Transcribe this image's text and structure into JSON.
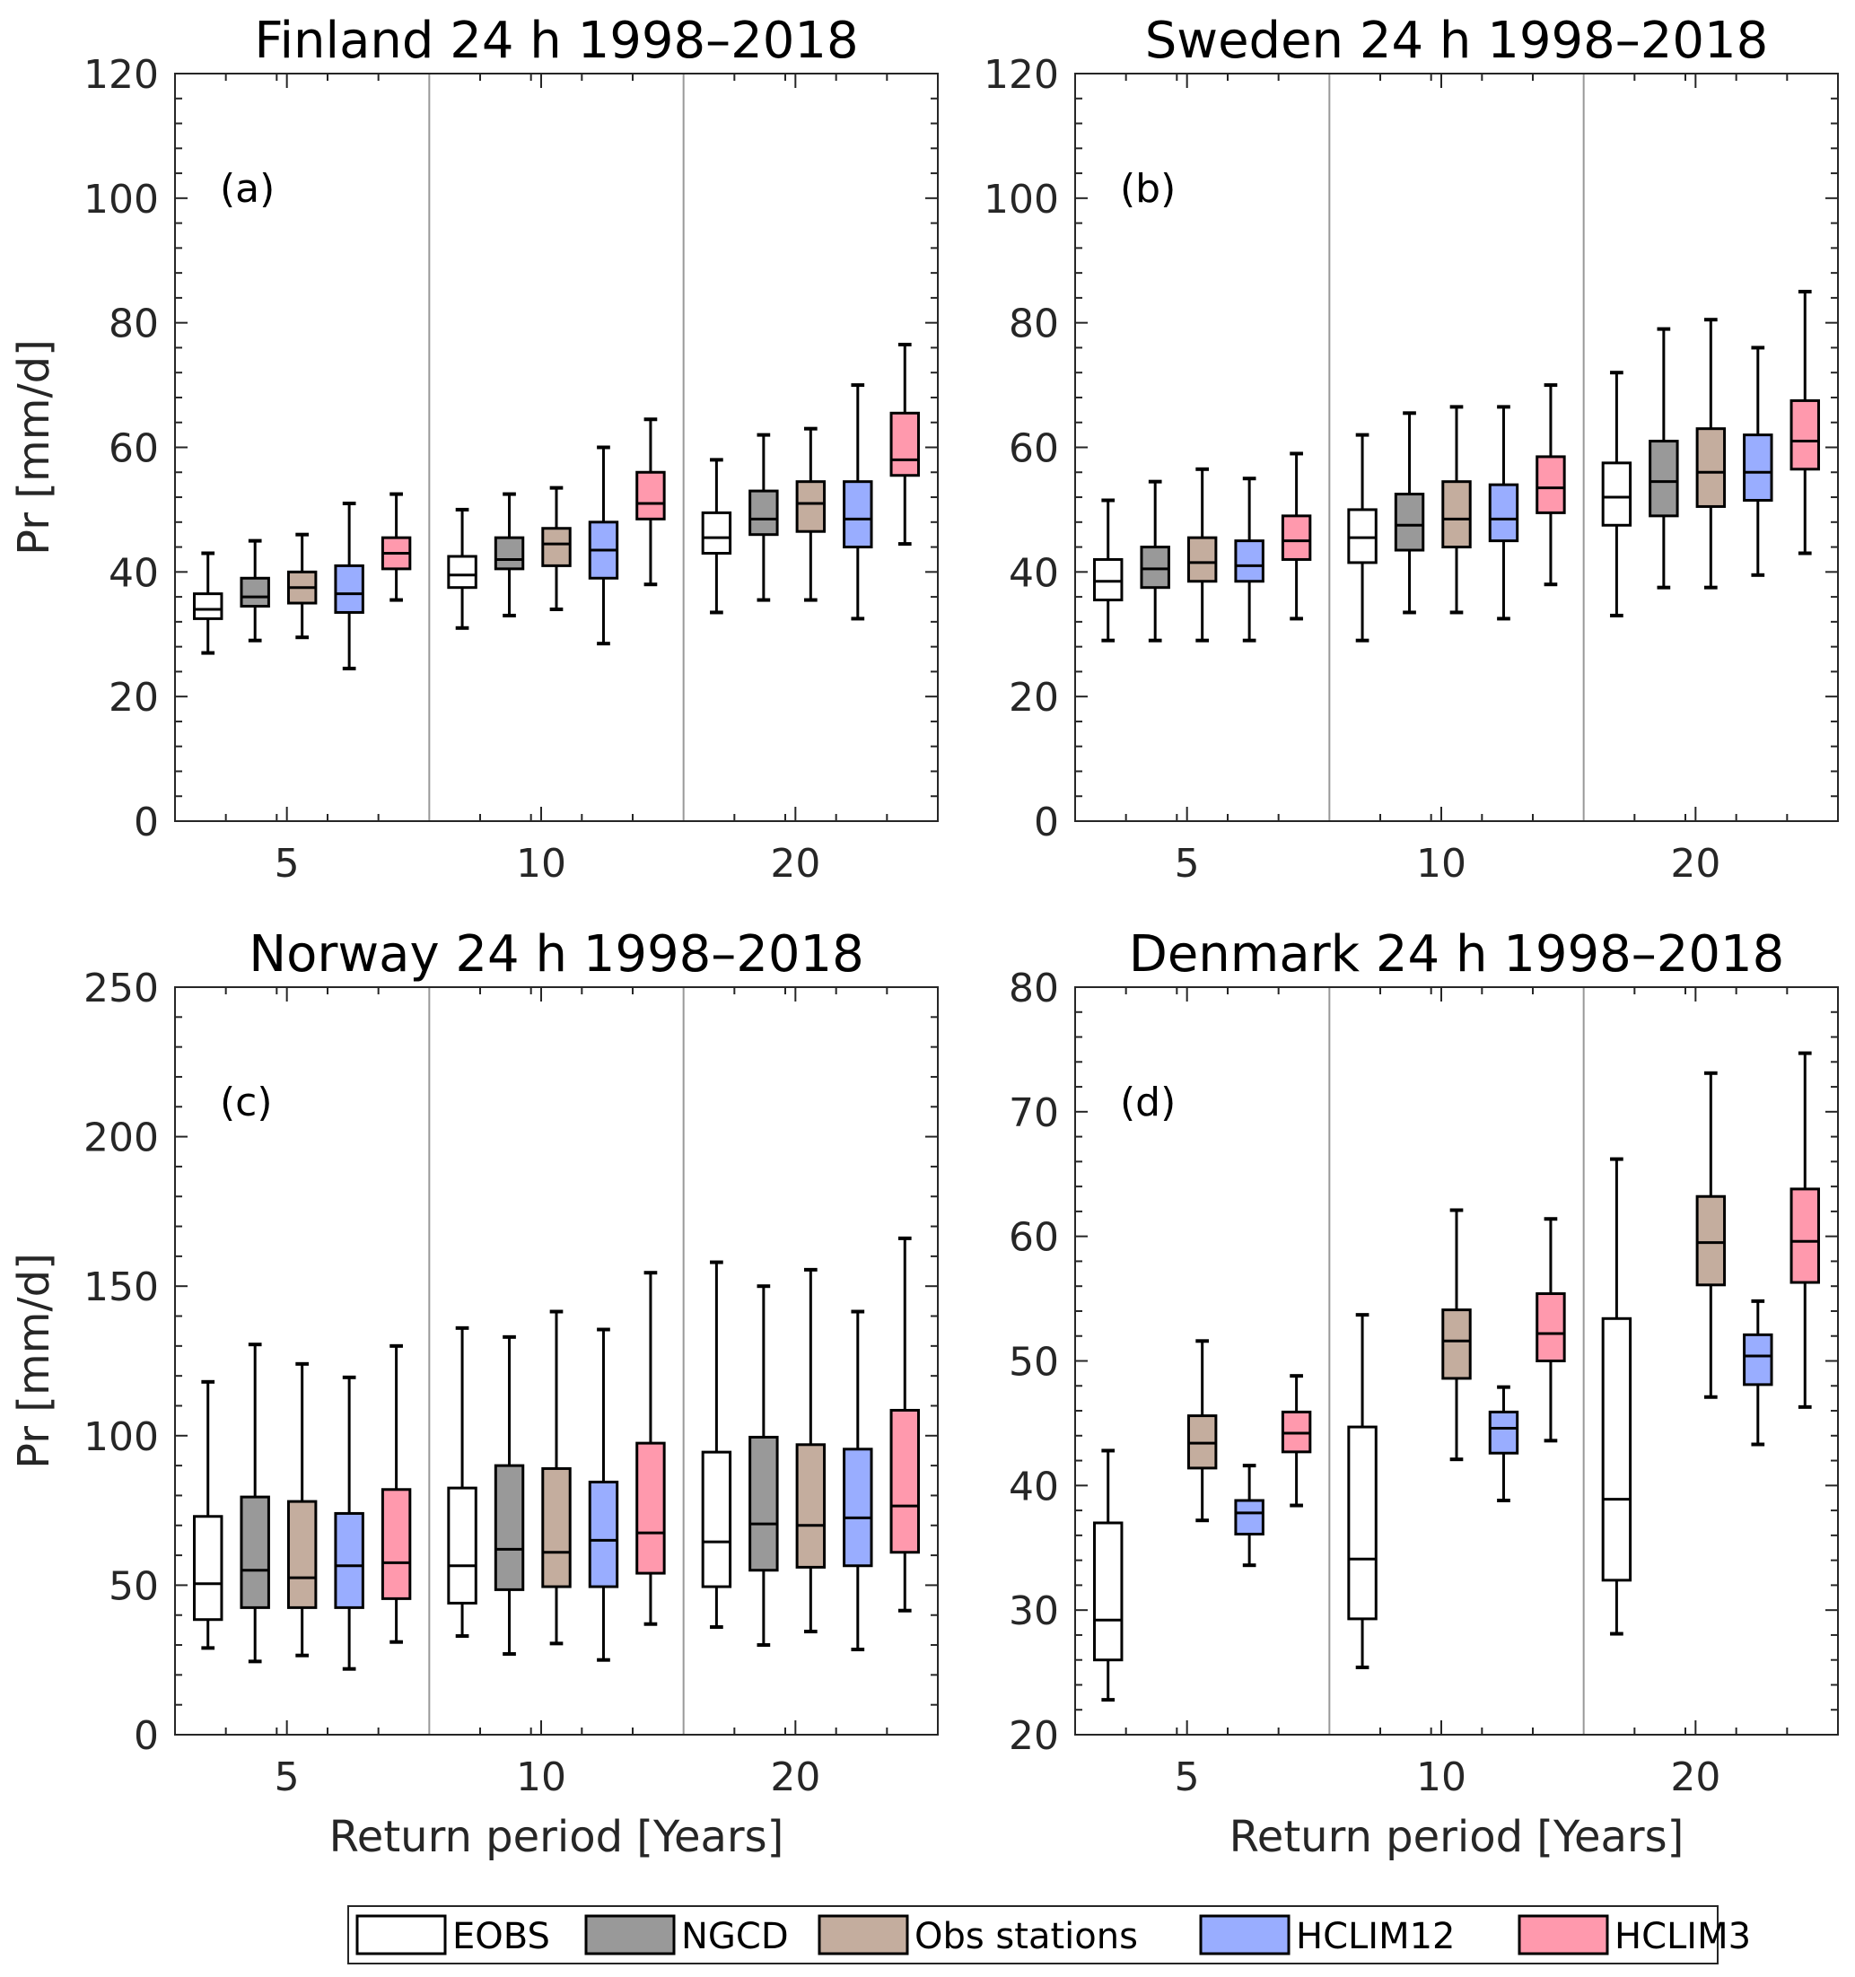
{
  "legend": {
    "items": [
      {
        "name": "EOBS",
        "color": "#ffffff"
      },
      {
        "name": "NGCD",
        "color": "#999999"
      },
      {
        "name": "Obs stations",
        "color": "#c4ad9e"
      },
      {
        "name": "HCLIM12",
        "color": "#99adff"
      },
      {
        "name": "HCLIM3",
        "color": "#ff99ad"
      }
    ]
  },
  "chart_data": [
    {
      "type": "box",
      "title": "Finland 24 h 1998–2018",
      "panel_label": "(a)",
      "xlabel": "",
      "ylabel": "Pr [mm/d]",
      "ylim": [
        0,
        120
      ],
      "yticks": [
        0,
        20,
        40,
        60,
        80,
        100,
        120
      ],
      "categories": [
        "5",
        "10",
        "20"
      ],
      "series": [
        {
          "name": "EOBS",
          "boxes": [
            {
              "whisker_low": 27,
              "q1": 32.5,
              "median": 34,
              "q3": 36.5,
              "whisker_high": 43
            },
            {
              "whisker_low": 31,
              "q1": 37.5,
              "median": 39.5,
              "q3": 42.5,
              "whisker_high": 50
            },
            {
              "whisker_low": 33.5,
              "q1": 43,
              "median": 45.5,
              "q3": 49.5,
              "whisker_high": 58
            }
          ]
        },
        {
          "name": "NGCD",
          "boxes": [
            {
              "whisker_low": 29,
              "q1": 34.5,
              "median": 36,
              "q3": 39,
              "whisker_high": 45
            },
            {
              "whisker_low": 33,
              "q1": 40.5,
              "median": 42,
              "q3": 45.5,
              "whisker_high": 52.5
            },
            {
              "whisker_low": 35.5,
              "q1": 46,
              "median": 48.5,
              "q3": 53,
              "whisker_high": 62
            }
          ]
        },
        {
          "name": "Obs stations",
          "boxes": [
            {
              "whisker_low": 29.5,
              "q1": 35,
              "median": 37.5,
              "q3": 40,
              "whisker_high": 46
            },
            {
              "whisker_low": 34,
              "q1": 41,
              "median": 44.5,
              "q3": 47,
              "whisker_high": 53.5
            },
            {
              "whisker_low": 35.5,
              "q1": 46.5,
              "median": 51,
              "q3": 54.5,
              "whisker_high": 63
            }
          ]
        },
        {
          "name": "HCLIM12",
          "boxes": [
            {
              "whisker_low": 24.5,
              "q1": 33.5,
              "median": 36.5,
              "q3": 41,
              "whisker_high": 51
            },
            {
              "whisker_low": 28.5,
              "q1": 39,
              "median": 43.5,
              "q3": 48,
              "whisker_high": 60
            },
            {
              "whisker_low": 32.5,
              "q1": 44,
              "median": 48.5,
              "q3": 54.5,
              "whisker_high": 70
            }
          ]
        },
        {
          "name": "HCLIM3",
          "boxes": [
            {
              "whisker_low": 35.5,
              "q1": 40.5,
              "median": 43,
              "q3": 45.5,
              "whisker_high": 52.5
            },
            {
              "whisker_low": 38,
              "q1": 48.5,
              "median": 51,
              "q3": 56,
              "whisker_high": 64.5
            },
            {
              "whisker_low": 44.5,
              "q1": 55.5,
              "median": 58,
              "q3": 65.5,
              "whisker_high": 76.5
            }
          ]
        }
      ]
    },
    {
      "type": "box",
      "title": "Sweden 24 h 1998–2018",
      "panel_label": "(b)",
      "xlabel": "",
      "ylabel": "",
      "ylim": [
        0,
        120
      ],
      "yticks": [
        0,
        20,
        40,
        60,
        80,
        100,
        120
      ],
      "categories": [
        "5",
        "10",
        "20"
      ],
      "series": [
        {
          "name": "EOBS",
          "boxes": [
            {
              "whisker_low": 29,
              "q1": 35.5,
              "median": 38.5,
              "q3": 42,
              "whisker_high": 51.5
            },
            {
              "whisker_low": 29,
              "q1": 41.5,
              "median": 45.5,
              "q3": 50,
              "whisker_high": 62
            },
            {
              "whisker_low": 33,
              "q1": 47.5,
              "median": 52,
              "q3": 57.5,
              "whisker_high": 72
            }
          ]
        },
        {
          "name": "NGCD",
          "boxes": [
            {
              "whisker_low": 29,
              "q1": 37.5,
              "median": 40.5,
              "q3": 44,
              "whisker_high": 54.5
            },
            {
              "whisker_low": 33.5,
              "q1": 43.5,
              "median": 47.5,
              "q3": 52.5,
              "whisker_high": 65.5
            },
            {
              "whisker_low": 37.5,
              "q1": 49,
              "median": 54.5,
              "q3": 61,
              "whisker_high": 79
            }
          ]
        },
        {
          "name": "Obs stations",
          "boxes": [
            {
              "whisker_low": 29,
              "q1": 38.5,
              "median": 41.5,
              "q3": 45.5,
              "whisker_high": 56.5
            },
            {
              "whisker_low": 33.5,
              "q1": 44,
              "median": 48.5,
              "q3": 54.5,
              "whisker_high": 66.5
            },
            {
              "whisker_low": 37.5,
              "q1": 50.5,
              "median": 56,
              "q3": 63,
              "whisker_high": 80.5
            }
          ]
        },
        {
          "name": "HCLIM12",
          "boxes": [
            {
              "whisker_low": 29,
              "q1": 38.5,
              "median": 41,
              "q3": 45,
              "whisker_high": 55
            },
            {
              "whisker_low": 32.5,
              "q1": 45,
              "median": 48.5,
              "q3": 54,
              "whisker_high": 66.5
            },
            {
              "whisker_low": 39.5,
              "q1": 51.5,
              "median": 56,
              "q3": 62,
              "whisker_high": 76
            }
          ]
        },
        {
          "name": "HCLIM3",
          "boxes": [
            {
              "whisker_low": 32.5,
              "q1": 42,
              "median": 45,
              "q3": 49,
              "whisker_high": 59
            },
            {
              "whisker_low": 38,
              "q1": 49.5,
              "median": 53.5,
              "q3": 58.5,
              "whisker_high": 70
            },
            {
              "whisker_low": 43,
              "q1": 56.5,
              "median": 61,
              "q3": 67.5,
              "whisker_high": 85
            }
          ]
        }
      ]
    },
    {
      "type": "box",
      "title": "Norway 24 h 1998–2018",
      "panel_label": "(c)",
      "xlabel": "Return period [Years]",
      "ylabel": "Pr [mm/d]",
      "ylim": [
        0,
        250
      ],
      "yticks": [
        0,
        50,
        100,
        150,
        200,
        250
      ],
      "categories": [
        "5",
        "10",
        "20"
      ],
      "series": [
        {
          "name": "EOBS",
          "boxes": [
            {
              "whisker_low": 29,
              "q1": 38.5,
              "median": 50.5,
              "q3": 73,
              "whisker_high": 118
            },
            {
              "whisker_low": 33,
              "q1": 44,
              "median": 56.5,
              "q3": 82.5,
              "whisker_high": 136
            },
            {
              "whisker_low": 36,
              "q1": 49.5,
              "median": 64.5,
              "q3": 94.5,
              "whisker_high": 158
            }
          ]
        },
        {
          "name": "NGCD",
          "boxes": [
            {
              "whisker_low": 24.5,
              "q1": 42.5,
              "median": 55,
              "q3": 79.5,
              "whisker_high": 130.5
            },
            {
              "whisker_low": 27,
              "q1": 48.5,
              "median": 62,
              "q3": 90,
              "whisker_high": 133
            },
            {
              "whisker_low": 30,
              "q1": 55,
              "median": 70.5,
              "q3": 99.5,
              "whisker_high": 150
            }
          ]
        },
        {
          "name": "Obs stations",
          "boxes": [
            {
              "whisker_low": 26.5,
              "q1": 42.5,
              "median": 52.5,
              "q3": 78,
              "whisker_high": 124
            },
            {
              "whisker_low": 30.5,
              "q1": 49.5,
              "median": 61,
              "q3": 89,
              "whisker_high": 141.5
            },
            {
              "whisker_low": 34.5,
              "q1": 56,
              "median": 70,
              "q3": 97,
              "whisker_high": 155.5
            }
          ]
        },
        {
          "name": "HCLIM12",
          "boxes": [
            {
              "whisker_low": 22,
              "q1": 42.5,
              "median": 56.5,
              "q3": 74,
              "whisker_high": 119.5
            },
            {
              "whisker_low": 25,
              "q1": 49.5,
              "median": 65,
              "q3": 84.5,
              "whisker_high": 135.5
            },
            {
              "whisker_low": 28.5,
              "q1": 56.5,
              "median": 72.5,
              "q3": 95.5,
              "whisker_high": 141.5
            }
          ]
        },
        {
          "name": "HCLIM3",
          "boxes": [
            {
              "whisker_low": 31,
              "q1": 45.5,
              "median": 57.5,
              "q3": 82,
              "whisker_high": 130
            },
            {
              "whisker_low": 37,
              "q1": 54,
              "median": 67.5,
              "q3": 97.5,
              "whisker_high": 154.5
            },
            {
              "whisker_low": 41.5,
              "q1": 61,
              "median": 76.5,
              "q3": 108.5,
              "whisker_high": 166
            }
          ]
        }
      ]
    },
    {
      "type": "box",
      "title": "Denmark 24 h 1998–2018",
      "panel_label": "(d)",
      "xlabel": "Return period [Years]",
      "ylabel": "",
      "ylim": [
        20,
        80
      ],
      "yticks": [
        20,
        30,
        40,
        50,
        60,
        70,
        80
      ],
      "categories": [
        "5",
        "10",
        "20"
      ],
      "series": [
        {
          "name": "EOBS",
          "boxes": [
            {
              "whisker_low": 22.8,
              "q1": 26,
              "median": 29.2,
              "q3": 37,
              "whisker_high": 42.8
            },
            {
              "whisker_low": 25.4,
              "q1": 29.3,
              "median": 34.1,
              "q3": 44.7,
              "whisker_high": 53.7
            },
            {
              "whisker_low": 28.1,
              "q1": 32.4,
              "median": 38.9,
              "q3": 53.4,
              "whisker_high": 66.2
            }
          ]
        },
        {
          "name": "NGCD",
          "boxes": []
        },
        {
          "name": "Obs stations",
          "boxes": [
            {
              "whisker_low": 37.2,
              "q1": 41.4,
              "median": 43.4,
              "q3": 45.6,
              "whisker_high": 51.6
            },
            {
              "whisker_low": 42.1,
              "q1": 48.6,
              "median": 51.6,
              "q3": 54.1,
              "whisker_high": 62.1
            },
            {
              "whisker_low": 47.1,
              "q1": 56.1,
              "median": 59.5,
              "q3": 63.2,
              "whisker_high": 73.1
            }
          ]
        },
        {
          "name": "HCLIM12",
          "boxes": [
            {
              "whisker_low": 33.6,
              "q1": 36.1,
              "median": 37.8,
              "q3": 38.8,
              "whisker_high": 41.6
            },
            {
              "whisker_low": 38.8,
              "q1": 42.6,
              "median": 44.6,
              "q3": 45.9,
              "whisker_high": 47.9
            },
            {
              "whisker_low": 43.3,
              "q1": 48.1,
              "median": 50.4,
              "q3": 52.1,
              "whisker_high": 54.8
            }
          ]
        },
        {
          "name": "HCLIM3",
          "boxes": [
            {
              "whisker_low": 38.4,
              "q1": 42.7,
              "median": 44.2,
              "q3": 45.9,
              "whisker_high": 48.8
            },
            {
              "whisker_low": 43.6,
              "q1": 50,
              "median": 52.2,
              "q3": 55.4,
              "whisker_high": 61.4
            },
            {
              "whisker_low": 46.3,
              "q1": 56.3,
              "median": 59.6,
              "q3": 63.8,
              "whisker_high": 74.7
            }
          ]
        }
      ]
    }
  ]
}
